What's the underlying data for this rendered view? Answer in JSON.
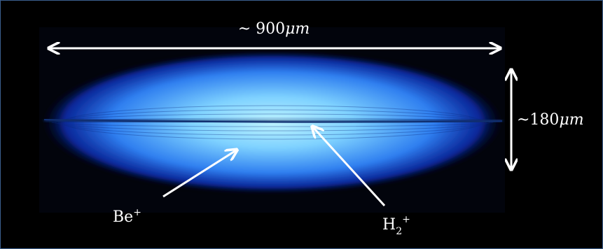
{
  "image": {
    "background": "#000000",
    "frame_color": "#3b5f8f",
    "cloud_core_color": "#8fe0ff",
    "cloud_mid_color": "#2f7ff0",
    "cloud_edge_color": "#0b1f8a",
    "central_line_color": "#0a2a66",
    "annotation_color": "#ffffff"
  },
  "annotations": {
    "width_label_prefix": "~ 900",
    "width_label_unit": "μm",
    "height_label_prefix": "~180",
    "height_label_unit": "μm",
    "be_label_base": "Be",
    "be_label_sup": "+",
    "h2_label_base": "H",
    "h2_label_sub": "2",
    "h2_label_sup": "+"
  }
}
